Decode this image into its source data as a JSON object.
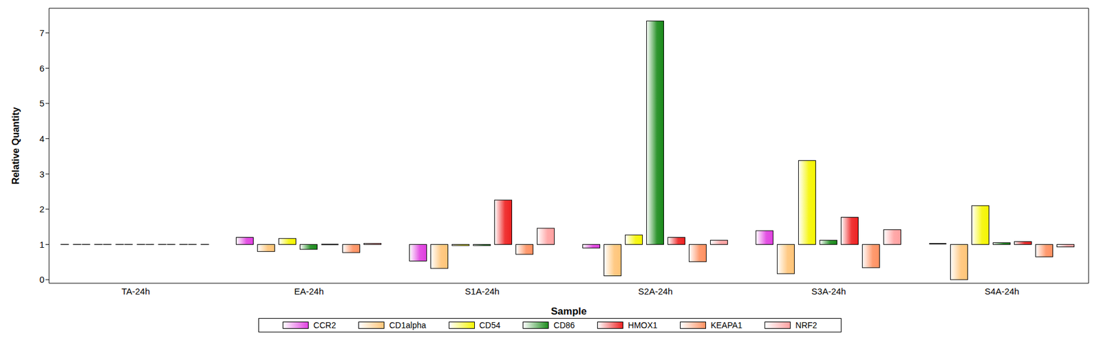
{
  "chart_data": {
    "type": "bar",
    "x_label": "Sample",
    "y_label": "Relative Quantity",
    "categories": [
      "TA-24h",
      "EA-24h",
      "S1A-24h",
      "S2A-24h",
      "S3A-24h",
      "S4A-24h"
    ],
    "series": [
      {
        "name": "CCR2",
        "color": "#e040e0",
        "values": [
          1,
          1.2,
          0.53,
          0.9,
          1.39,
          1.02
        ]
      },
      {
        "name": "CD1alpha",
        "color": "#ffc477",
        "values": [
          1,
          0.8,
          0.32,
          0.11,
          0.17,
          0.0
        ]
      },
      {
        "name": "CD54",
        "color": "#f5f500",
        "values": [
          1,
          1.17,
          0.97,
          1.27,
          3.38,
          2.1
        ]
      },
      {
        "name": "CD86",
        "color": "#1a8a1a",
        "values": [
          1,
          0.86,
          0.97,
          7.34,
          1.12,
          1.05
        ]
      },
      {
        "name": "HMOX1",
        "color": "#ee2020",
        "values": [
          1,
          1.0,
          2.26,
          1.2,
          1.77,
          1.08
        ]
      },
      {
        "name": "KEAPA1",
        "color": "#ff9060",
        "values": [
          1,
          0.77,
          0.72,
          0.51,
          0.34,
          0.65
        ]
      },
      {
        "name": "NRF2",
        "color": "#ffa0a0",
        "values": [
          1,
          1.03,
          1.46,
          1.12,
          1.42,
          0.93
        ]
      }
    ],
    "ylim": [
      -0.1,
      7.7
    ],
    "yticks": [
      0,
      1,
      2,
      3,
      4,
      5,
      6,
      7
    ],
    "legend": "bottom",
    "grid": false
  }
}
